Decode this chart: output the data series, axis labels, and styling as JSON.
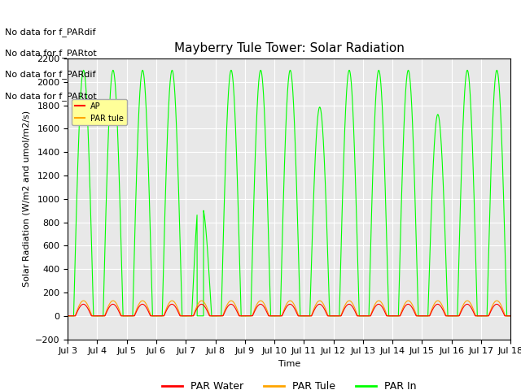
{
  "title": "Mayberry Tule Tower: Solar Radiation",
  "ylabel": "Solar Radiation (W/m2 and umol/m2/s)",
  "xlabel": "Time",
  "ylim": [
    -200,
    2200
  ],
  "xlim_days": [
    3,
    18
  ],
  "yticks": [
    -200,
    0,
    200,
    400,
    600,
    800,
    1000,
    1200,
    1400,
    1600,
    1800,
    2000,
    2200
  ],
  "xtick_labels": [
    "Jul 3",
    "Jul 4",
    "Jul 5",
    "Jul 6",
    "Jul 7",
    "Jul 8",
    "Jul 9",
    "Jul 10",
    "Jul 11",
    "Jul 12",
    "Jul 13",
    "Jul 14",
    "Jul 15",
    "Jul 16",
    "Jul 17",
    "Jul 18"
  ],
  "color_par_in": "#00FF00",
  "color_par_tule": "#FFA500",
  "color_par_water": "#FF0000",
  "color_background": "#E8E8E8",
  "annotations": [
    "No data for f_PARdif",
    "No data for f_PARtot",
    "No data for f_PARdif",
    "No data for f_PARtot"
  ],
  "par_in_peak": 2100,
  "par_tule_peak": 130,
  "par_water_peak": 100,
  "title_fontsize": 11,
  "axis_label_fontsize": 8,
  "tick_fontsize": 8,
  "annot_fontsize": 8
}
